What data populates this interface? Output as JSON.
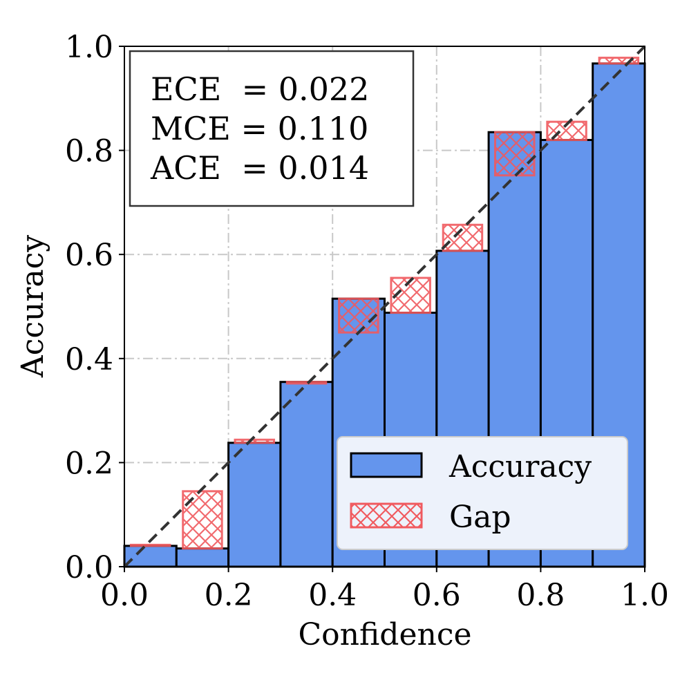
{
  "chart_data": {
    "type": "bar",
    "title": "",
    "xlabel": "Confidence",
    "ylabel": "Accuracy",
    "xlim": [
      0.0,
      1.0
    ],
    "ylim": [
      0.0,
      1.0
    ],
    "grid": true,
    "x_ticks": [
      "0.0",
      "0.2",
      "0.4",
      "0.6",
      "0.8",
      "1.0"
    ],
    "y_ticks": [
      "0.0",
      "0.2",
      "0.4",
      "0.6",
      "0.8",
      "1.0"
    ],
    "bins": [
      {
        "bin_start": 0.0,
        "bin_end": 0.1,
        "accuracy": 0.04,
        "gap_low": 0.04,
        "gap_high": 0.042
      },
      {
        "bin_start": 0.1,
        "bin_end": 0.2,
        "accuracy": 0.035,
        "gap_low": 0.035,
        "gap_high": 0.145
      },
      {
        "bin_start": 0.2,
        "bin_end": 0.3,
        "accuracy": 0.238,
        "gap_low": 0.238,
        "gap_high": 0.244
      },
      {
        "bin_start": 0.3,
        "bin_end": 0.4,
        "accuracy": 0.355,
        "gap_low": 0.352,
        "gap_high": 0.355
      },
      {
        "bin_start": 0.4,
        "bin_end": 0.5,
        "accuracy": 0.515,
        "gap_low": 0.45,
        "gap_high": 0.515
      },
      {
        "bin_start": 0.5,
        "bin_end": 0.6,
        "accuracy": 0.488,
        "gap_low": 0.488,
        "gap_high": 0.555
      },
      {
        "bin_start": 0.6,
        "bin_end": 0.7,
        "accuracy": 0.607,
        "gap_low": 0.607,
        "gap_high": 0.657
      },
      {
        "bin_start": 0.7,
        "bin_end": 0.8,
        "accuracy": 0.835,
        "gap_low": 0.752,
        "gap_high": 0.835
      },
      {
        "bin_start": 0.8,
        "bin_end": 0.9,
        "accuracy": 0.82,
        "gap_low": 0.82,
        "gap_high": 0.855
      },
      {
        "bin_start": 0.9,
        "bin_end": 1.0,
        "accuracy": 0.967,
        "gap_low": 0.967,
        "gap_high": 0.978
      }
    ],
    "diagonal": {
      "from": [
        0.0,
        0.0
      ],
      "to": [
        1.0,
        1.0
      ]
    },
    "legend": {
      "placement": "lower-right",
      "entries": [
        {
          "name": "Accuracy",
          "kind": "bar"
        },
        {
          "name": "Gap",
          "kind": "hatch"
        }
      ]
    },
    "annotation_box": {
      "placement": "top-left",
      "lines": [
        "ECE  = 0.022",
        "MCE = 0.110",
        "ACE  = 0.014"
      ]
    }
  },
  "colors": {
    "accuracy_fill": "#6495ED",
    "bar_edge": "#000000",
    "gap_edge": "#F05A5F",
    "grid": "#C8C8C8",
    "diagonal": "#333333",
    "legend_bg": "#EDF2FB"
  }
}
